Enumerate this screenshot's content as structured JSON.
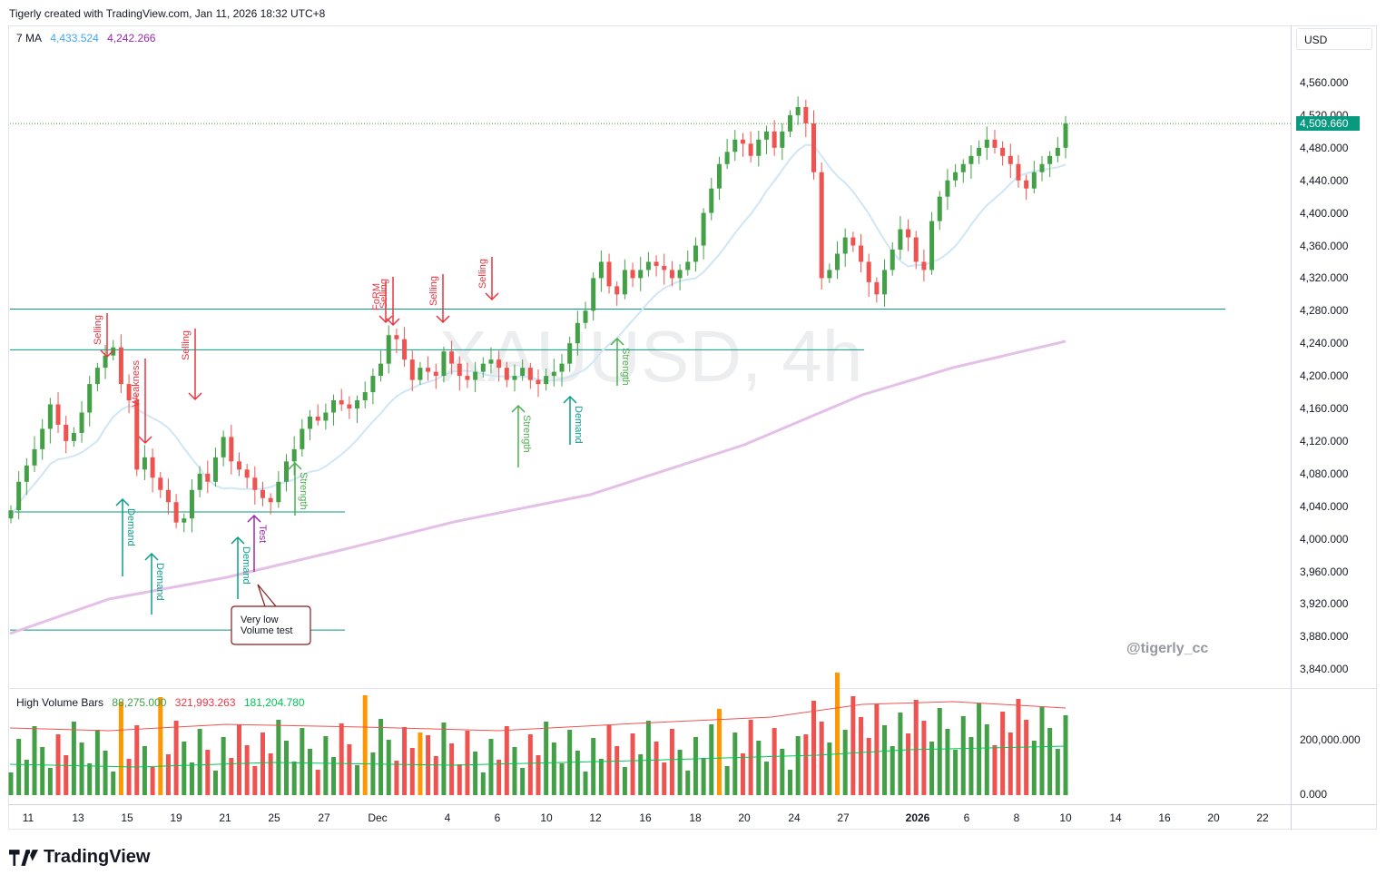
{
  "header": {
    "credit": "Tigerly created with TradingView.com, Jan 11, 2026 18:32 UTC+8"
  },
  "legend": {
    "ma_label": "7 MA",
    "ma_value_1": "4,433.524",
    "ma_value_2": "4,242.266",
    "ma_color_1": "#42a5f5",
    "ma_color_2": "#9c27b0"
  },
  "volume_legend": {
    "label": "High Volume Bars",
    "v1": "88,275.000",
    "v2": "321,993.263",
    "v3": "181,204.780",
    "c1": "#43a047",
    "c2": "#f23645",
    "c3": "#00c853"
  },
  "currency": "USD",
  "watermark": "XAUUSD, 4h",
  "handle": "@tigerly_cc",
  "brand": "TradingView",
  "colors": {
    "up": "#43a047",
    "down": "#ef5350",
    "hline": "#089981",
    "ma_short": "#cfe6f7",
    "ma_long": "#e4bfe8",
    "sell": "#e8343f",
    "demand": "#0a9e8a",
    "strength": "#4caf50",
    "test": "#9c27b0",
    "spike": "#ff9800"
  },
  "chart_data": {
    "type": "candlestick",
    "symbol": "XAUUSD",
    "timeframe": "4h",
    "y_ticks": [
      4560,
      4520,
      4480,
      4440,
      4400,
      4360,
      4320,
      4280,
      4240,
      4200,
      4160,
      4120,
      4080,
      4040,
      4000,
      3960,
      3920,
      3880,
      3840
    ],
    "y_tick_labels": [
      "4,560.000",
      "4,520.000",
      "4,480.000",
      "4,440.000",
      "4,400.000",
      "4,360.000",
      "4,320.000",
      "4,280.000",
      "4,240.000",
      "4,200.000",
      "4,160.000",
      "4,120.000",
      "4,080.000",
      "4,040.000",
      "4,000.000",
      "3,960.000",
      "3,920.000",
      "3,880.000",
      "3,840.000"
    ],
    "ylim": [
      3820,
      4605
    ],
    "last_price": 4509.66,
    "last_price_label": "4,509.660",
    "x_labels": [
      "11",
      "13",
      "15",
      "19",
      "21",
      "25",
      "27",
      "Dec",
      "4",
      "6",
      "10",
      "12",
      "16",
      "18",
      "20",
      "24",
      "27",
      "2026",
      "6",
      "8",
      "10",
      "14",
      "16",
      "20",
      "22"
    ],
    "x_label_bold": [
      false,
      false,
      false,
      false,
      false,
      false,
      false,
      false,
      false,
      false,
      false,
      false,
      false,
      false,
      false,
      false,
      false,
      true,
      false,
      false,
      false,
      false,
      false,
      false,
      false
    ],
    "close_path": [
      4035,
      4070,
      4090,
      4110,
      4135,
      4165,
      4140,
      4120,
      4130,
      4155,
      4190,
      4210,
      4225,
      4235,
      4190,
      4170,
      4085,
      4100,
      4075,
      4060,
      4045,
      4020,
      4025,
      4060,
      4080,
      4070,
      4100,
      4125,
      4095,
      4085,
      4075,
      4060,
      4050,
      4045,
      4070,
      4095,
      4110,
      4135,
      4150,
      4145,
      4155,
      4170,
      4165,
      4160,
      4170,
      4180,
      4200,
      4215,
      4250,
      4245,
      4220,
      4195,
      4210,
      4205,
      4200,
      4230,
      4215,
      4200,
      4195,
      4205,
      4215,
      4220,
      4210,
      4195,
      4200,
      4210,
      4195,
      4190,
      4200,
      4205,
      4215,
      4240,
      4265,
      4280,
      4320,
      4340,
      4310,
      4300,
      4330,
      4320,
      4330,
      4340,
      4335,
      4330,
      4320,
      4330,
      4340,
      4360,
      4400,
      4430,
      4460,
      4475,
      4490,
      4485,
      4470,
      4490,
      4500,
      4480,
      4500,
      4520,
      4530,
      4510,
      4450,
      4320,
      4330,
      4350,
      4370,
      4360,
      4340,
      4315,
      4300,
      4330,
      4355,
      4380,
      4370,
      4340,
      4330,
      4390,
      4420,
      4440,
      4450,
      4460,
      4470,
      4480,
      4490,
      4480,
      4470,
      4460,
      4440,
      4430,
      4450,
      4460,
      4470,
      4480,
      4510
    ],
    "hlines": [
      {
        "price": 4232,
        "x_from": "11",
        "x_to": "12"
      },
      {
        "price": 4282,
        "x_from": "12",
        "x_to": "20"
      },
      {
        "price": 4033,
        "x_from": "11",
        "x_to": "25"
      },
      {
        "price": 3888,
        "x_from": "11",
        "x_to": "25"
      }
    ],
    "annotations": [
      {
        "text": "Selling",
        "kind": "sell"
      },
      {
        "text": "Weakness",
        "kind": "sell"
      },
      {
        "text": "Selling",
        "kind": "sell"
      },
      {
        "text": "FoRM",
        "kind": "sell"
      },
      {
        "text": "Selling",
        "kind": "sell"
      },
      {
        "text": "Selling",
        "kind": "sell"
      },
      {
        "text": "Selling",
        "kind": "sell"
      },
      {
        "text": "Demand",
        "kind": "demand"
      },
      {
        "text": "Demand",
        "kind": "demand"
      },
      {
        "text": "Demand",
        "kind": "demand"
      },
      {
        "text": "Test",
        "kind": "test"
      },
      {
        "text": "Strength",
        "kind": "strength"
      },
      {
        "text": "Strength",
        "kind": "strength"
      },
      {
        "text": "Demand",
        "kind": "demand"
      },
      {
        "text": "Strength",
        "kind": "strength"
      }
    ],
    "callout": {
      "line1": "Very low",
      "line2": "Volume test"
    },
    "volume": {
      "y_ticks": [
        "200,000.000",
        "0.000"
      ]
    }
  }
}
